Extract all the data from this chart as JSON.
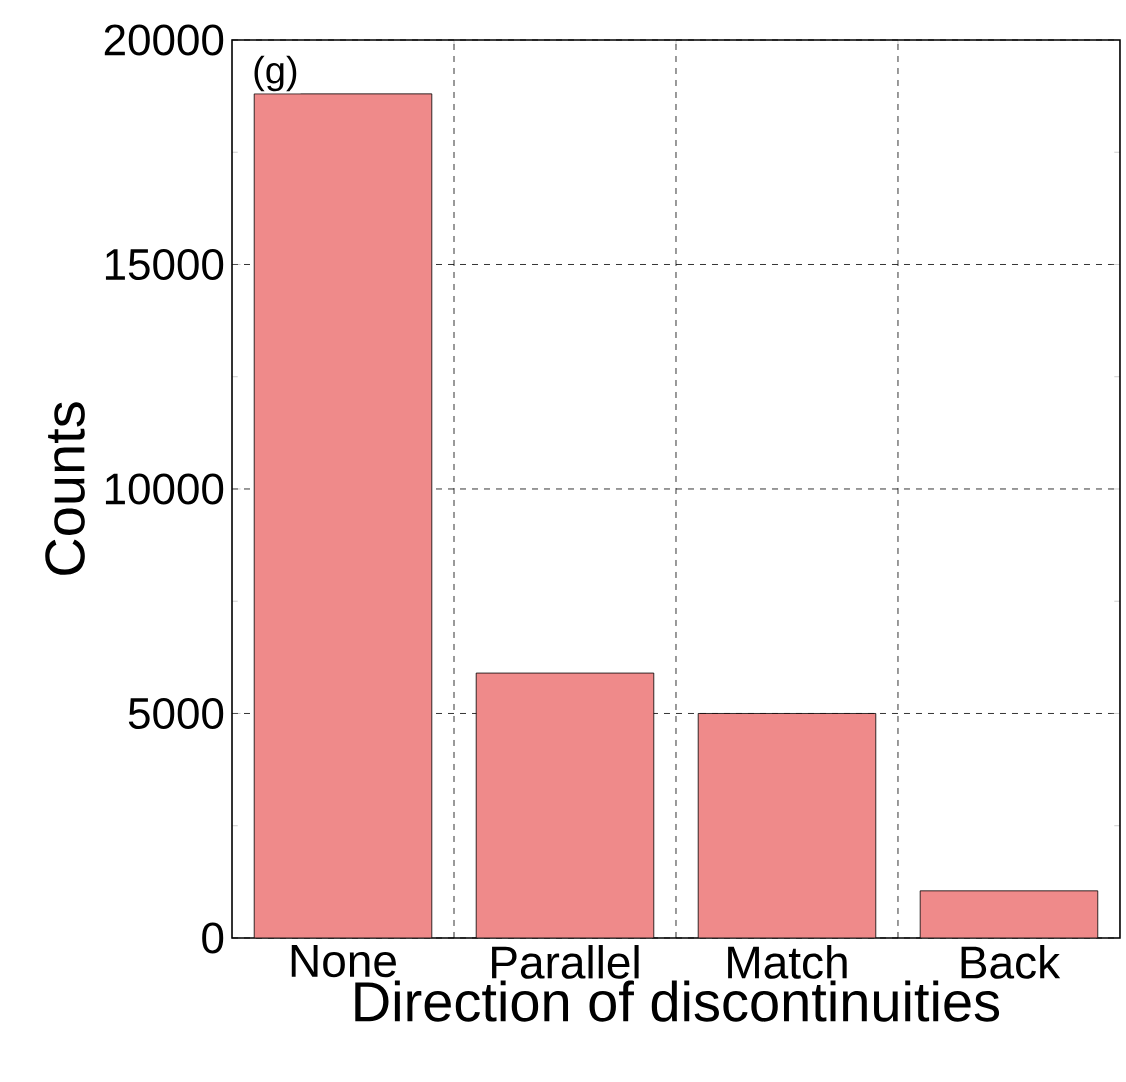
{
  "chart_data": {
    "type": "bar",
    "xlabel": "Direction of discontinuities",
    "ylabel": "Counts",
    "categories": [
      "None",
      "Parallel",
      "Match",
      "Back"
    ],
    "values": [
      18800,
      5900,
      5000,
      1050
    ],
    "color": "#ef8a8a",
    "ylim": [
      0,
      20000
    ],
    "yticks": [
      0,
      5000,
      10000,
      15000,
      20000
    ],
    "grid": true,
    "annotations": [
      "(g)"
    ]
  }
}
